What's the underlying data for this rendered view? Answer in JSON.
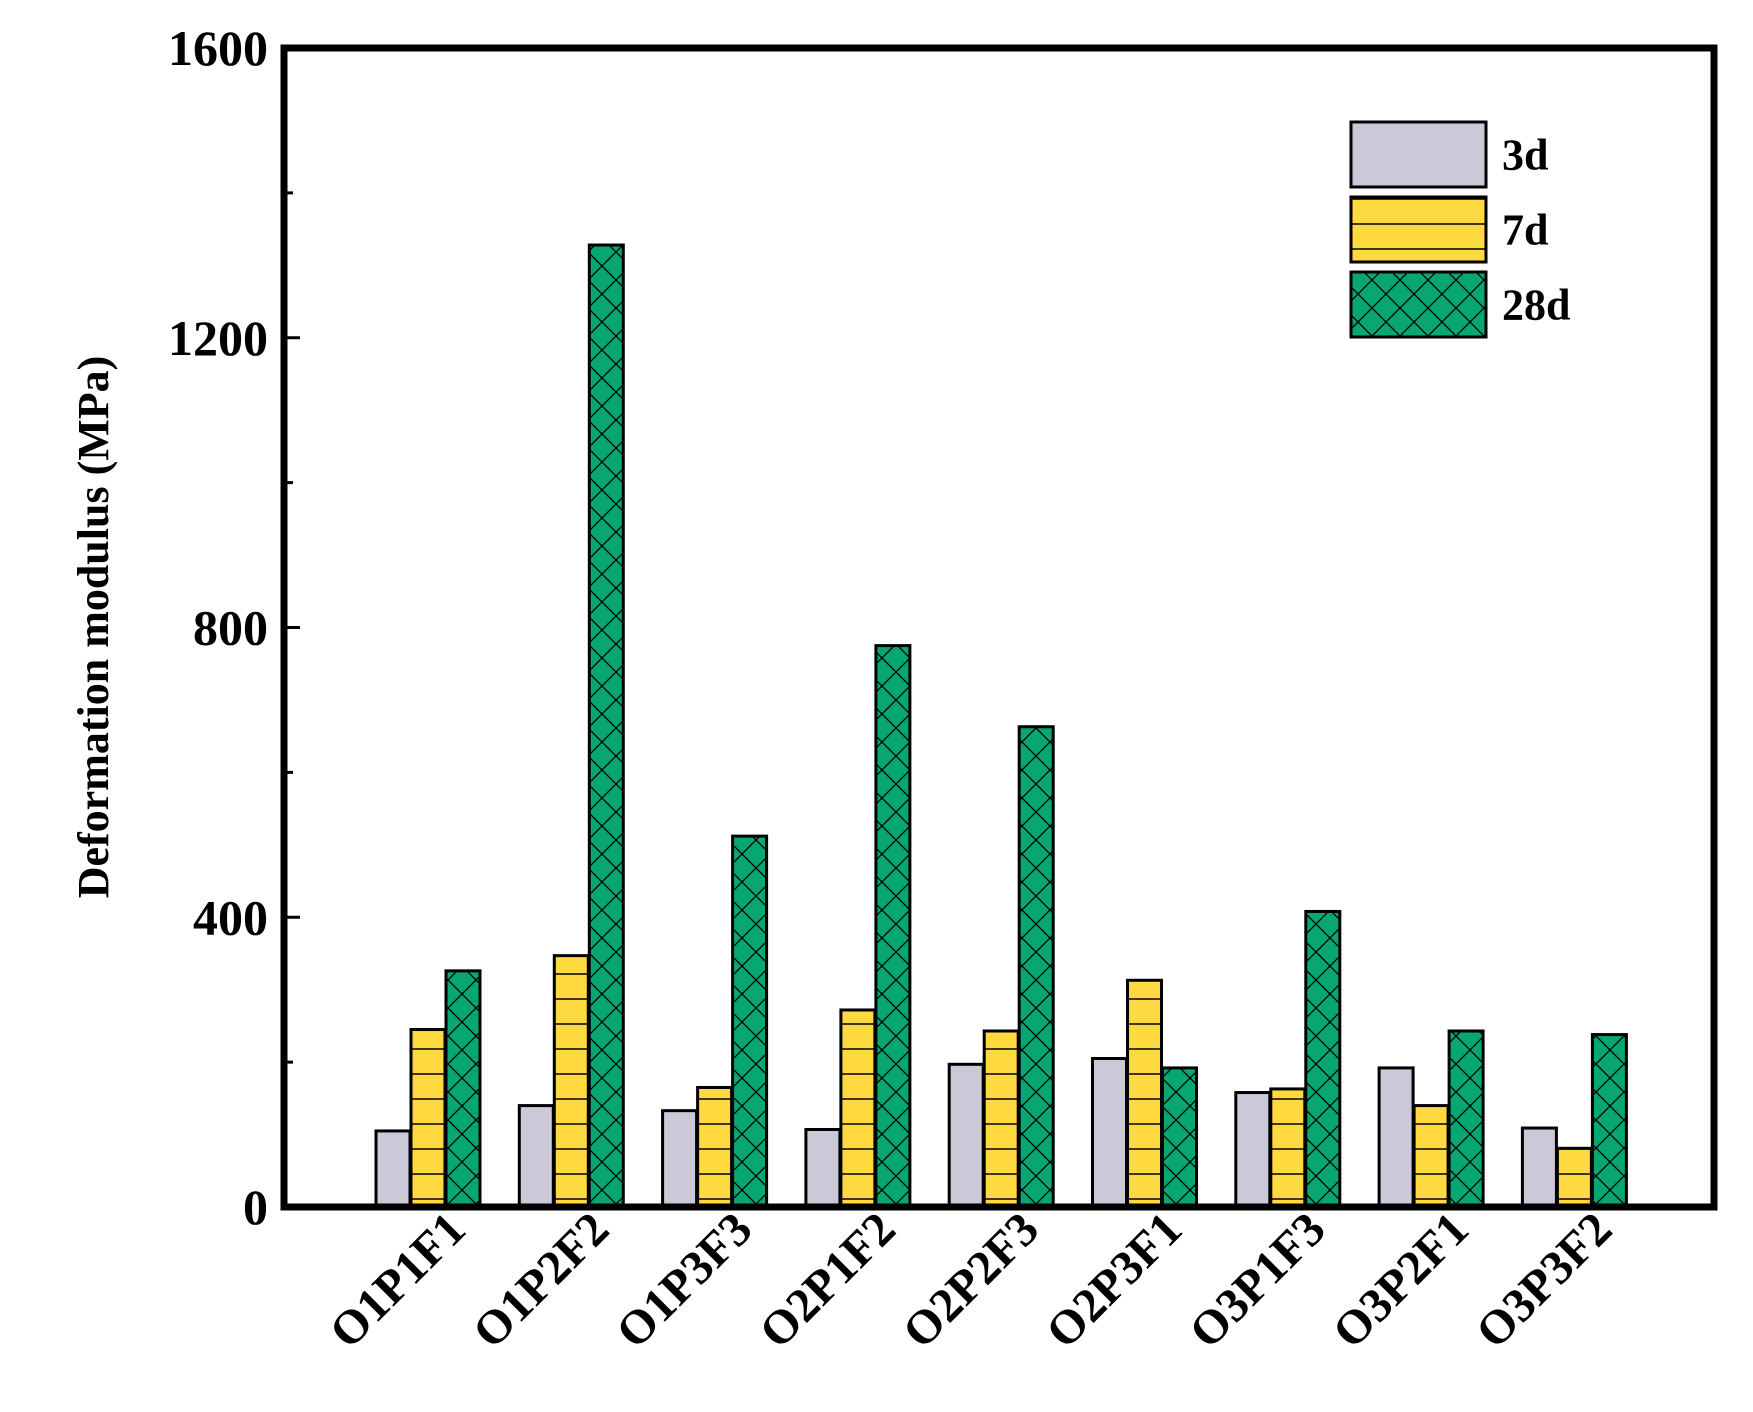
{
  "chart_data": {
    "type": "bar",
    "title": "",
    "xlabel": "",
    "ylabel": "Deformation modulus (MPa)",
    "ylim": [
      0,
      1600
    ],
    "yticks": [
      0,
      400,
      800,
      1200,
      1600
    ],
    "grid": false,
    "legend_position": "top-right",
    "categories": [
      "O1P1F1",
      "O1P2F2",
      "O1P3F3",
      "O2P1F2",
      "O2P2F3",
      "O2P3F1",
      "O3P1F3",
      "O3P2F1",
      "O3P3F2"
    ],
    "series": [
      {
        "name": "3d",
        "color": "#cbc8d8",
        "pattern": "none",
        "values": [
          105,
          140,
          133,
          107,
          197,
          205,
          158,
          192,
          109
        ]
      },
      {
        "name": "7d",
        "color": "#fed93f",
        "pattern": "horizontal-lines",
        "values": [
          245,
          347,
          165,
          272,
          243,
          313,
          163,
          140,
          81
        ]
      },
      {
        "name": "28d",
        "color": "#08a772",
        "pattern": "crosshatch",
        "values": [
          326,
          1328,
          512,
          775,
          663,
          192,
          408,
          243,
          238
        ]
      }
    ]
  }
}
